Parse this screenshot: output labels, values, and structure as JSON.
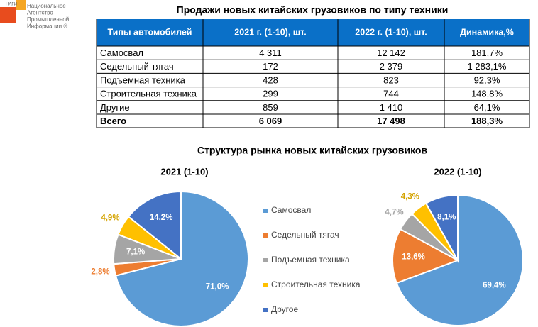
{
  "header": {
    "logo_mark": "НАГИ",
    "logo_lines": [
      "Национальное",
      "Агентство",
      "Промышленной",
      "Информации ®"
    ]
  },
  "table": {
    "title": "Продажи новых китайских грузовиков по типу техники",
    "columns": [
      "Типы автомобилей",
      "2021 г. (1-10), шт.",
      "2022 г. (1-10), шт.",
      "Динамика,%"
    ],
    "rows": [
      [
        "Самосвал",
        "4 311",
        "12 142",
        "181,7%"
      ],
      [
        "Седельный тягач",
        "172",
        "2 379",
        "1 283,1%"
      ],
      [
        "Подъемная техника",
        "428",
        "823",
        "92,3%"
      ],
      [
        "Строительная техника",
        "299",
        "744",
        "148,8%"
      ],
      [
        "Другие",
        "859",
        "1 410",
        "64,1%"
      ],
      [
        "Всего",
        "6 069",
        "17 498",
        "188,3%"
      ]
    ]
  },
  "charts_title": "Структура рынка новых китайских грузовиков",
  "legend": {
    "labels": [
      "Самосвал",
      "Седельный тягач",
      "Подъемная техника",
      "Строительная техника",
      "Другое"
    ],
    "colors": [
      "#5b9bd5",
      "#ed7d31",
      "#a5a5a5",
      "#ffc000",
      "#4472c4"
    ]
  },
  "chart_data": [
    {
      "type": "pie",
      "title": "2021 (1-10)",
      "values": [
        71.0,
        2.8,
        7.1,
        4.9,
        14.2
      ],
      "value_labels": [
        "71,0%",
        "2,8%",
        "7,1%",
        "4,9%",
        "14,2%"
      ]
    },
    {
      "type": "pie",
      "title": "2022 (1-10)",
      "values": [
        69.4,
        13.6,
        4.7,
        4.3,
        8.1
      ],
      "value_labels": [
        "69,4%",
        "13,6%",
        "4,7%",
        "4,3%",
        "8,1%"
      ]
    }
  ]
}
